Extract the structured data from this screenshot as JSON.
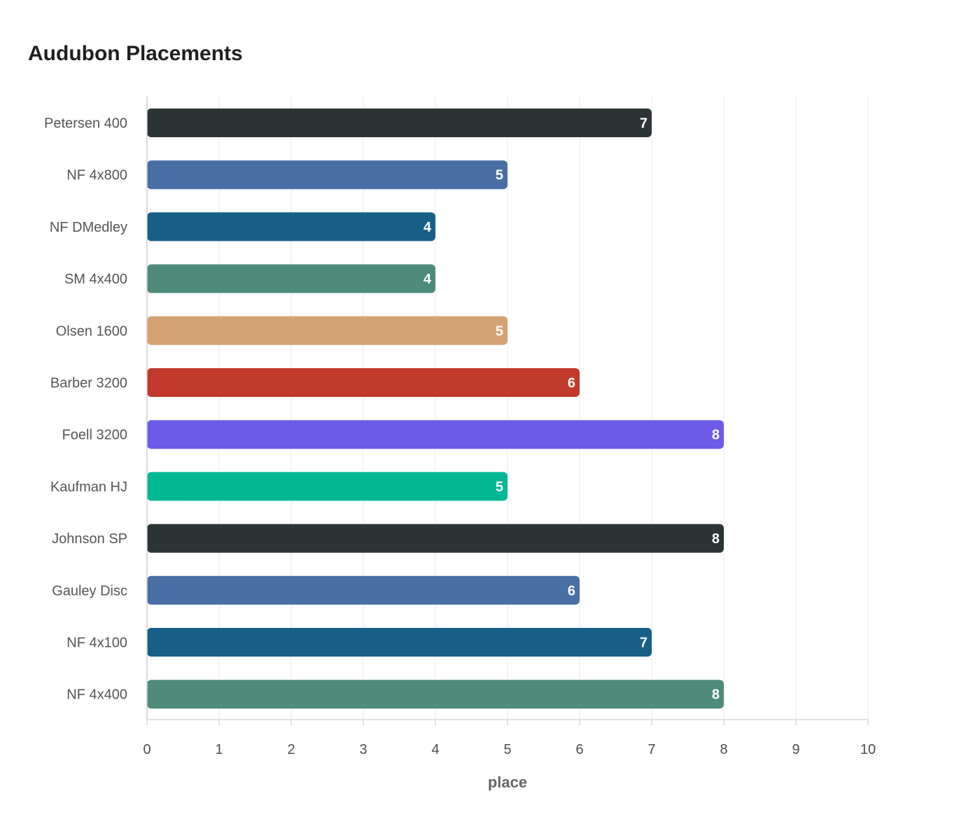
{
  "chart_data": {
    "type": "bar",
    "orientation": "horizontal",
    "title": "Audubon Placements",
    "xlabel": "place",
    "ylabel": "",
    "xlim": [
      0,
      10
    ],
    "x_ticks": [
      "0",
      "1",
      "2",
      "3",
      "4",
      "5",
      "6",
      "7",
      "8",
      "9",
      "10"
    ],
    "grid": true,
    "legend": "none",
    "categories": [
      "Petersen 400",
      "NF 4x800",
      "NF DMedley",
      "SM 4x400",
      "Olsen 1600",
      "Barber 3200",
      "Foell 3200",
      "Kaufman HJ",
      "Johnson SP",
      "Gauley Disc",
      "NF 4x100",
      "NF 4x400"
    ],
    "values": [
      7,
      5,
      4,
      4,
      5,
      6,
      8,
      5,
      8,
      6,
      7,
      8
    ],
    "value_labels": [
      "7",
      "5",
      "4",
      "4",
      "5",
      "6",
      "8",
      "5",
      "8",
      "6",
      "7",
      "8"
    ],
    "colors": [
      "#2d3436",
      "#4a6fa5",
      "#166088",
      "#4f8b7a",
      "#d4a373",
      "#c0392b",
      "#6c5ce7",
      "#00b894",
      "#2d3436",
      "#4a6fa5",
      "#166088",
      "#4f8b7a"
    ]
  }
}
